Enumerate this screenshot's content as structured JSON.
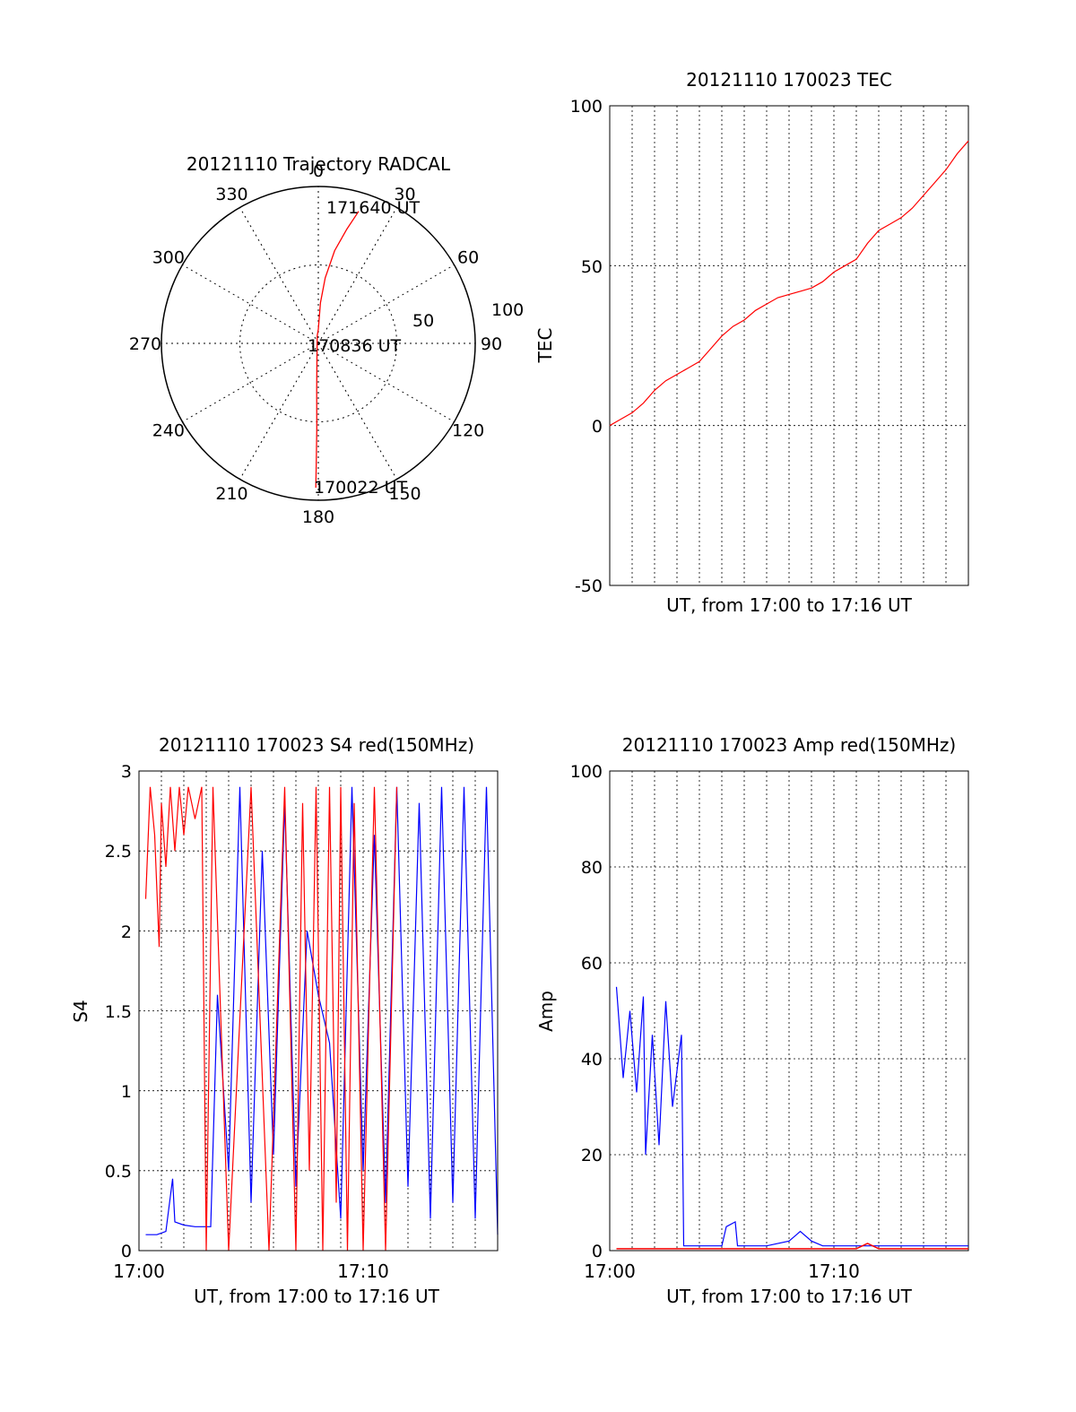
{
  "chart_data": [
    {
      "type": "polar",
      "title": "20121110 Trajectory RADCAL",
      "angle_labels": [
        "0",
        "30",
        "60",
        "90",
        "120",
        "150",
        "180",
        "210",
        "240",
        "270",
        "300",
        "330"
      ],
      "radial_labels": [
        "50",
        "100"
      ],
      "radial_range": [
        0,
        100
      ],
      "grid": true,
      "track": {
        "points_azimuth_radius": [
          [
            17,
            88
          ],
          [
            14,
            75
          ],
          [
            10,
            60
          ],
          [
            6,
            42
          ],
          [
            3,
            26
          ],
          [
            0,
            9
          ],
          [
            352,
            5
          ],
          [
            186,
            8
          ],
          [
            182,
            30
          ],
          [
            181,
            55
          ],
          [
            181,
            80
          ],
          [
            181,
            92
          ]
        ],
        "annotations": [
          {
            "label": "171640 UT",
            "azimuth": 17,
            "radius": 88
          },
          {
            "label": "170836 UT",
            "azimuth": 0,
            "radius": 0
          },
          {
            "label": "170022 UT",
            "azimuth": 181,
            "radius": 92
          }
        ]
      },
      "colors": {
        "track": "#ff0000"
      }
    },
    {
      "type": "line",
      "title": "20121110 170023 TEC",
      "xlabel": "UT, from 17:00 to 17:16 UT",
      "ylabel": "TEC",
      "xlim": [
        0,
        16
      ],
      "ylim": [
        -50,
        100
      ],
      "y_ticks": [
        "100",
        "50",
        "0",
        "-50"
      ],
      "grid": true,
      "series": [
        {
          "color": "#ff0000",
          "x": [
            0,
            0.5,
            1,
            1.5,
            2,
            2.5,
            3,
            3.5,
            4,
            4.5,
            5,
            5.5,
            6,
            6.5,
            7,
            7.5,
            8,
            8.5,
            9,
            9.5,
            10,
            10.5,
            11,
            11.5,
            12,
            12.5,
            13,
            13.5,
            14,
            14.5,
            15,
            15.5,
            16
          ],
          "values": [
            0,
            2,
            4,
            7,
            11,
            14,
            16,
            18,
            20,
            24,
            28,
            31,
            33,
            36,
            38,
            40,
            41,
            42,
            43,
            45,
            48,
            50,
            52,
            57,
            61,
            63,
            65,
            68,
            72,
            76,
            80,
            85,
            89
          ]
        }
      ]
    },
    {
      "type": "line",
      "title": "20121110 170023 S4 red(150MHz)",
      "xlabel": "UT, from 17:00 to 17:16 UT",
      "ylabel": "S4",
      "xlim": [
        0,
        16
      ],
      "ylim": [
        0,
        3
      ],
      "x_ticks": [
        {
          "x": 0,
          "label": "17:00"
        },
        {
          "x": 10,
          "label": "17:10"
        }
      ],
      "y_ticks": [
        "3",
        "2.5",
        "2",
        "1.5",
        "1",
        "0.5",
        "0"
      ],
      "grid": true,
      "series": [
        {
          "color": "#0000ff",
          "x": [
            0.3,
            0.8,
            1.2,
            1.5,
            1.6,
            2.0,
            2.5,
            3.2,
            3.5,
            4.0,
            4.5,
            5.0,
            5.5,
            6.0,
            6.5,
            7.0,
            7.5,
            8.0,
            8.5,
            9.0,
            9.5,
            10.0,
            10.5,
            11.0,
            11.5,
            12.0,
            12.5,
            13.0,
            13.5,
            14.0,
            14.5,
            15.0,
            15.5,
            16.0
          ],
          "values": [
            0.1,
            0.1,
            0.12,
            0.45,
            0.18,
            0.16,
            0.15,
            0.15,
            1.6,
            0.5,
            2.9,
            0.3,
            2.5,
            0.6,
            2.8,
            0.4,
            2.0,
            1.6,
            1.3,
            0.2,
            2.9,
            0.5,
            2.6,
            0.3,
            2.9,
            0.4,
            2.8,
            0.2,
            2.9,
            0.3,
            2.9,
            0.2,
            2.9,
            0.1
          ]
        },
        {
          "color": "#ff0000",
          "x": [
            0.3,
            0.5,
            0.7,
            0.9,
            1.0,
            1.2,
            1.4,
            1.6,
            1.8,
            2.0,
            2.2,
            2.5,
            2.8,
            3.0,
            3.3,
            4.0,
            5.0,
            5.8,
            6.5,
            7.0,
            7.3,
            7.6,
            7.9,
            8.2,
            8.5,
            8.8,
            9.0,
            9.3,
            9.6,
            10.0,
            10.5,
            11.0,
            11.5
          ],
          "values": [
            2.2,
            2.9,
            2.6,
            1.9,
            2.8,
            2.4,
            2.9,
            2.5,
            2.9,
            2.6,
            2.9,
            2.7,
            2.9,
            0,
            2.9,
            0,
            2.9,
            0,
            2.9,
            0,
            2.8,
            0.5,
            2.9,
            0,
            2.9,
            0.3,
            2.9,
            0,
            2.8,
            0,
            2.9,
            0,
            2.9
          ]
        }
      ]
    },
    {
      "type": "line",
      "title": "20121110 170023 Amp red(150MHz)",
      "xlabel": "UT, from 17:00 to 17:16 UT",
      "ylabel": "Amp",
      "xlim": [
        0,
        16
      ],
      "ylim": [
        0,
        100
      ],
      "x_ticks": [
        {
          "x": 0,
          "label": "17:00"
        },
        {
          "x": 10,
          "label": "17:10"
        }
      ],
      "y_ticks": [
        "100",
        "80",
        "60",
        "40",
        "20",
        "0"
      ],
      "grid": true,
      "series": [
        {
          "color": "#0000ff",
          "x": [
            0.3,
            0.6,
            0.9,
            1.2,
            1.5,
            1.6,
            1.9,
            2.2,
            2.5,
            2.8,
            3.2,
            3.3,
            4.0,
            5.0,
            5.2,
            5.6,
            5.7,
            6.0,
            7.0,
            8.0,
            8.5,
            9.0,
            9.5,
            10.0,
            11.0,
            12.0,
            13.0,
            14.0,
            15.0,
            16.0
          ],
          "values": [
            55,
            36,
            50,
            33,
            53,
            20,
            45,
            22,
            52,
            30,
            45,
            1,
            1,
            1,
            5,
            6,
            1,
            1,
            1,
            2,
            4,
            2,
            1,
            1,
            1,
            1,
            1,
            1,
            1,
            1
          ]
        },
        {
          "color": "#ff0000",
          "x": [
            0.3,
            1.0,
            2.0,
            3.0,
            4.0,
            5.0,
            6.0,
            7.0,
            8.0,
            9.0,
            10.0,
            11.0,
            11.5,
            12.0,
            13.0,
            14.0,
            15.0,
            16.0
          ],
          "values": [
            0.4,
            0.4,
            0.4,
            0.4,
            0.4,
            0.4,
            0.4,
            0.4,
            0.4,
            0.4,
            0.4,
            0.4,
            1.5,
            0.4,
            0.4,
            0.4,
            0.4,
            0.4
          ]
        }
      ]
    }
  ]
}
